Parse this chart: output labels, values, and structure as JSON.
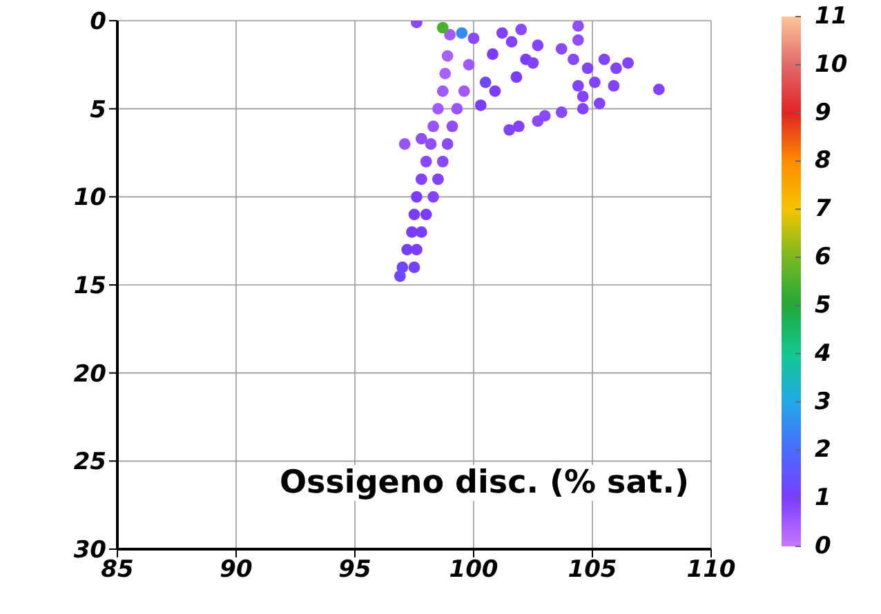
{
  "chart_data": {
    "type": "scatter",
    "title": "Ossigeno disc. (% sat.)",
    "x": [
      99.0,
      98.9,
      98.8,
      98.7,
      98.5,
      98.3,
      98.2,
      98.0,
      97.8,
      97.6,
      97.5,
      97.4,
      97.2,
      97.0,
      96.9,
      100.0,
      99.8,
      99.6,
      99.3,
      99.1,
      98.9,
      98.7,
      98.5,
      98.3,
      98.0,
      97.8,
      97.6,
      97.5,
      100.5,
      100.8,
      101.2,
      100.9,
      100.3,
      101.8,
      102.2,
      102.5,
      101.6,
      102.0,
      102.7,
      103.7,
      101.5,
      101.9,
      102.7,
      103.0,
      103.7,
      104.6,
      105.3,
      104.4,
      104.4,
      104.2,
      104.8,
      104.4,
      104.6,
      105.1,
      105.5,
      106.0,
      106.5,
      105.9,
      107.8,
      97.1,
      97.8,
      97.6,
      98.7,
      99.5
    ],
    "values": [
      0.8,
      2,
      3,
      4,
      5,
      6,
      7,
      8,
      9,
      10,
      11,
      12,
      13,
      14,
      14.5,
      1,
      2.5,
      4,
      5,
      6,
      7,
      8,
      9,
      10,
      11,
      12,
      13,
      14,
      3.5,
      1.9,
      0.7,
      4.0,
      4.8,
      3.2,
      2.2,
      2.4,
      1.2,
      0.5,
      1.4,
      1.6,
      6.2,
      6.0,
      5.7,
      5.4,
      5.2,
      5.0,
      4.7,
      0.3,
      1.1,
      2.2,
      2.7,
      3.7,
      4.3,
      3.5,
      2.2,
      2.7,
      2.4,
      3.7,
      3.9,
      7.0,
      6.7,
      0.1,
      0.4,
      0.7
    ],
    "cvalues": [
      0.5,
      0.4,
      0.4,
      0.5,
      0.5,
      0.6,
      0.7,
      0.8,
      0.9,
      1,
      1,
      1,
      1.1,
      1.2,
      1.2,
      0.8,
      0.5,
      0.5,
      0.6,
      0.7,
      0.8,
      0.8,
      0.9,
      0.9,
      1,
      1,
      1,
      1.1,
      1.2,
      1,
      0.9,
      1,
      1,
      1,
      1,
      0.9,
      0.9,
      0.8,
      0.9,
      0.8,
      0.9,
      0.9,
      0.8,
      0.8,
      0.8,
      0.9,
      0.9,
      0.7,
      0.7,
      0.8,
      0.9,
      0.9,
      0.9,
      0.9,
      0.9,
      0.9,
      0.9,
      0.9,
      0.9,
      0.6,
      0.7,
      0.8,
      5.5,
      2.5
    ],
    "xlim": [
      85,
      110
    ],
    "xticks": [
      85,
      90,
      95,
      100,
      105,
      110
    ],
    "ylim": [
      30,
      0
    ],
    "yticks": [
      0,
      5,
      10,
      15,
      20,
      25,
      30
    ],
    "clim": [
      0,
      11
    ],
    "cticks": [
      0,
      1,
      2,
      3,
      4,
      5,
      6,
      7,
      8,
      9,
      10,
      11
    ],
    "grid": true,
    "marker": "circle"
  }
}
